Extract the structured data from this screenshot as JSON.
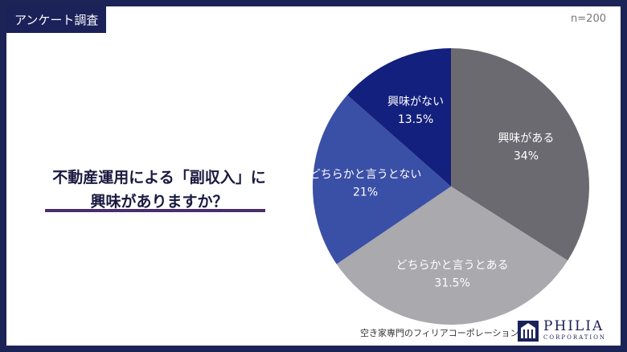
{
  "header": {
    "tag": "アンケート調査",
    "sample_size": "n=200"
  },
  "question": {
    "line1": "不動産運用による「副収入」に",
    "line2": "興味がありますか？"
  },
  "chart_data": {
    "type": "pie",
    "slices": [
      {
        "label": "興味がある",
        "value": 34,
        "value_label": "34%",
        "color": "#6b6a70"
      },
      {
        "label": "どちらかと言うとある",
        "value": 31.5,
        "value_label": "31.5%",
        "color": "#a9a9ae"
      },
      {
        "label": "どちらかと言うとない",
        "value": 21,
        "value_label": "21%",
        "color": "#3a4fa6"
      },
      {
        "label": "興味がない",
        "value": 13.5,
        "value_label": "13.5%",
        "color": "#14207d"
      }
    ],
    "start": "12 o'clock",
    "direction": "clockwise"
  },
  "footer": {
    "company_desc": "空き家専門のフィリアコーポレーション",
    "logo_name": "PHILIA",
    "logo_sub": "CORPORATION"
  }
}
